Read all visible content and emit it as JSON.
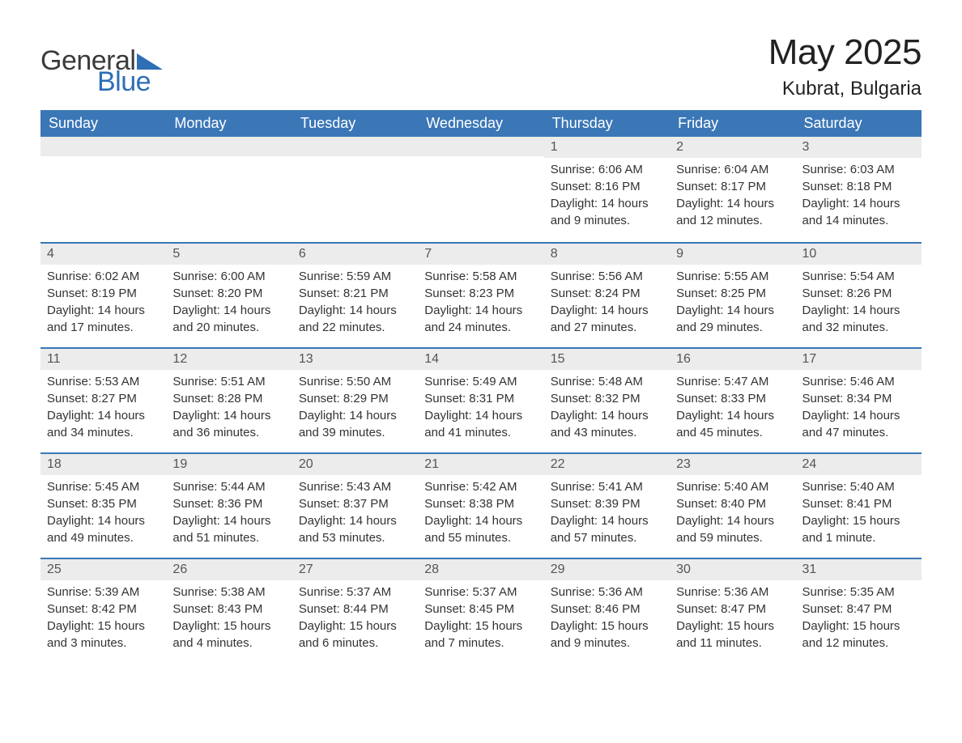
{
  "logo": {
    "text_general": "General",
    "text_blue": "Blue",
    "triangle_color": "#2d6eb5"
  },
  "title": "May 2025",
  "location": "Kubrat, Bulgaria",
  "colors": {
    "header_bg": "#3b77b7",
    "header_text": "#ffffff",
    "daynum_bg": "#ececec",
    "accent_border": "#3b77b7",
    "body_text": "#333333",
    "page_bg": "#ffffff"
  },
  "weekdays": [
    "Sunday",
    "Monday",
    "Tuesday",
    "Wednesday",
    "Thursday",
    "Friday",
    "Saturday"
  ],
  "weeks": [
    [
      {
        "empty": true
      },
      {
        "empty": true
      },
      {
        "empty": true
      },
      {
        "empty": true
      },
      {
        "day": "1",
        "sunrise": "Sunrise: 6:06 AM",
        "sunset": "Sunset: 8:16 PM",
        "daylight1": "Daylight: 14 hours",
        "daylight2": "and 9 minutes."
      },
      {
        "day": "2",
        "sunrise": "Sunrise: 6:04 AM",
        "sunset": "Sunset: 8:17 PM",
        "daylight1": "Daylight: 14 hours",
        "daylight2": "and 12 minutes."
      },
      {
        "day": "3",
        "sunrise": "Sunrise: 6:03 AM",
        "sunset": "Sunset: 8:18 PM",
        "daylight1": "Daylight: 14 hours",
        "daylight2": "and 14 minutes."
      }
    ],
    [
      {
        "day": "4",
        "sunrise": "Sunrise: 6:02 AM",
        "sunset": "Sunset: 8:19 PM",
        "daylight1": "Daylight: 14 hours",
        "daylight2": "and 17 minutes."
      },
      {
        "day": "5",
        "sunrise": "Sunrise: 6:00 AM",
        "sunset": "Sunset: 8:20 PM",
        "daylight1": "Daylight: 14 hours",
        "daylight2": "and 20 minutes."
      },
      {
        "day": "6",
        "sunrise": "Sunrise: 5:59 AM",
        "sunset": "Sunset: 8:21 PM",
        "daylight1": "Daylight: 14 hours",
        "daylight2": "and 22 minutes."
      },
      {
        "day": "7",
        "sunrise": "Sunrise: 5:58 AM",
        "sunset": "Sunset: 8:23 PM",
        "daylight1": "Daylight: 14 hours",
        "daylight2": "and 24 minutes."
      },
      {
        "day": "8",
        "sunrise": "Sunrise: 5:56 AM",
        "sunset": "Sunset: 8:24 PM",
        "daylight1": "Daylight: 14 hours",
        "daylight2": "and 27 minutes."
      },
      {
        "day": "9",
        "sunrise": "Sunrise: 5:55 AM",
        "sunset": "Sunset: 8:25 PM",
        "daylight1": "Daylight: 14 hours",
        "daylight2": "and 29 minutes."
      },
      {
        "day": "10",
        "sunrise": "Sunrise: 5:54 AM",
        "sunset": "Sunset: 8:26 PM",
        "daylight1": "Daylight: 14 hours",
        "daylight2": "and 32 minutes."
      }
    ],
    [
      {
        "day": "11",
        "sunrise": "Sunrise: 5:53 AM",
        "sunset": "Sunset: 8:27 PM",
        "daylight1": "Daylight: 14 hours",
        "daylight2": "and 34 minutes."
      },
      {
        "day": "12",
        "sunrise": "Sunrise: 5:51 AM",
        "sunset": "Sunset: 8:28 PM",
        "daylight1": "Daylight: 14 hours",
        "daylight2": "and 36 minutes."
      },
      {
        "day": "13",
        "sunrise": "Sunrise: 5:50 AM",
        "sunset": "Sunset: 8:29 PM",
        "daylight1": "Daylight: 14 hours",
        "daylight2": "and 39 minutes."
      },
      {
        "day": "14",
        "sunrise": "Sunrise: 5:49 AM",
        "sunset": "Sunset: 8:31 PM",
        "daylight1": "Daylight: 14 hours",
        "daylight2": "and 41 minutes."
      },
      {
        "day": "15",
        "sunrise": "Sunrise: 5:48 AM",
        "sunset": "Sunset: 8:32 PM",
        "daylight1": "Daylight: 14 hours",
        "daylight2": "and 43 minutes."
      },
      {
        "day": "16",
        "sunrise": "Sunrise: 5:47 AM",
        "sunset": "Sunset: 8:33 PM",
        "daylight1": "Daylight: 14 hours",
        "daylight2": "and 45 minutes."
      },
      {
        "day": "17",
        "sunrise": "Sunrise: 5:46 AM",
        "sunset": "Sunset: 8:34 PM",
        "daylight1": "Daylight: 14 hours",
        "daylight2": "and 47 minutes."
      }
    ],
    [
      {
        "day": "18",
        "sunrise": "Sunrise: 5:45 AM",
        "sunset": "Sunset: 8:35 PM",
        "daylight1": "Daylight: 14 hours",
        "daylight2": "and 49 minutes."
      },
      {
        "day": "19",
        "sunrise": "Sunrise: 5:44 AM",
        "sunset": "Sunset: 8:36 PM",
        "daylight1": "Daylight: 14 hours",
        "daylight2": "and 51 minutes."
      },
      {
        "day": "20",
        "sunrise": "Sunrise: 5:43 AM",
        "sunset": "Sunset: 8:37 PM",
        "daylight1": "Daylight: 14 hours",
        "daylight2": "and 53 minutes."
      },
      {
        "day": "21",
        "sunrise": "Sunrise: 5:42 AM",
        "sunset": "Sunset: 8:38 PM",
        "daylight1": "Daylight: 14 hours",
        "daylight2": "and 55 minutes."
      },
      {
        "day": "22",
        "sunrise": "Sunrise: 5:41 AM",
        "sunset": "Sunset: 8:39 PM",
        "daylight1": "Daylight: 14 hours",
        "daylight2": "and 57 minutes."
      },
      {
        "day": "23",
        "sunrise": "Sunrise: 5:40 AM",
        "sunset": "Sunset: 8:40 PM",
        "daylight1": "Daylight: 14 hours",
        "daylight2": "and 59 minutes."
      },
      {
        "day": "24",
        "sunrise": "Sunrise: 5:40 AM",
        "sunset": "Sunset: 8:41 PM",
        "daylight1": "Daylight: 15 hours",
        "daylight2": "and 1 minute."
      }
    ],
    [
      {
        "day": "25",
        "sunrise": "Sunrise: 5:39 AM",
        "sunset": "Sunset: 8:42 PM",
        "daylight1": "Daylight: 15 hours",
        "daylight2": "and 3 minutes."
      },
      {
        "day": "26",
        "sunrise": "Sunrise: 5:38 AM",
        "sunset": "Sunset: 8:43 PM",
        "daylight1": "Daylight: 15 hours",
        "daylight2": "and 4 minutes."
      },
      {
        "day": "27",
        "sunrise": "Sunrise: 5:37 AM",
        "sunset": "Sunset: 8:44 PM",
        "daylight1": "Daylight: 15 hours",
        "daylight2": "and 6 minutes."
      },
      {
        "day": "28",
        "sunrise": "Sunrise: 5:37 AM",
        "sunset": "Sunset: 8:45 PM",
        "daylight1": "Daylight: 15 hours",
        "daylight2": "and 7 minutes."
      },
      {
        "day": "29",
        "sunrise": "Sunrise: 5:36 AM",
        "sunset": "Sunset: 8:46 PM",
        "daylight1": "Daylight: 15 hours",
        "daylight2": "and 9 minutes."
      },
      {
        "day": "30",
        "sunrise": "Sunrise: 5:36 AM",
        "sunset": "Sunset: 8:47 PM",
        "daylight1": "Daylight: 15 hours",
        "daylight2": "and 11 minutes."
      },
      {
        "day": "31",
        "sunrise": "Sunrise: 5:35 AM",
        "sunset": "Sunset: 8:47 PM",
        "daylight1": "Daylight: 15 hours",
        "daylight2": "and 12 minutes."
      }
    ]
  ]
}
